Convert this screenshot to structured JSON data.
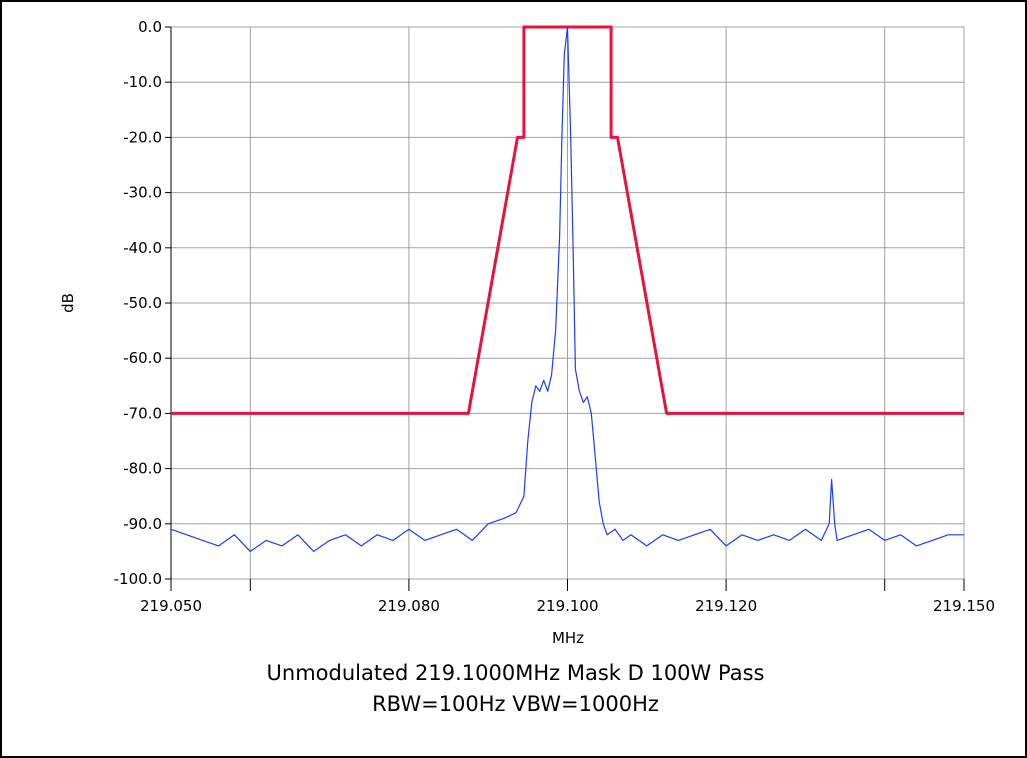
{
  "chart_data": {
    "type": "line",
    "caption_lines": [
      "Unmodulated  219.1000MHz  Mask D  100W Pass",
      "RBW=100Hz VBW=1000Hz"
    ],
    "xlabel": "MHz",
    "ylabel": "dB",
    "xlim": [
      219.05,
      219.15
    ],
    "ylim": [
      -100,
      0
    ],
    "x_tick_values": [
      219.05,
      219.06,
      219.08,
      219.1,
      219.12,
      219.14,
      219.15
    ],
    "x_tick_labels": [
      "219.050",
      "",
      "219.080",
      "219.100",
      "219.120",
      "",
      "219.150"
    ],
    "y_ticks": [
      0,
      -10,
      -20,
      -30,
      -40,
      -50,
      -60,
      -70,
      -80,
      -90,
      -100
    ],
    "y_tick_labels": [
      "0.0",
      "-10.0",
      "-20.0",
      "-30.0",
      "-40.0",
      "-50.0",
      "-60.0",
      "-70.0",
      "-80.0",
      "-90.0",
      "-100.0"
    ],
    "grid": true,
    "colors": {
      "mask": "#e8123c",
      "trace": "#1a3cff",
      "grid": "#a0a0a0"
    },
    "series": [
      {
        "role": "mask",
        "x": [
          219.05,
          219.0875,
          219.0937,
          219.0945,
          219.0945,
          219.1055,
          219.1055,
          219.1063,
          219.1125,
          219.15
        ],
        "y": [
          -70,
          -70,
          -20,
          -20,
          0,
          0,
          -20,
          -20,
          -70,
          -70
        ]
      },
      {
        "role": "trace",
        "x": [
          219.05,
          219.052,
          219.054,
          219.056,
          219.058,
          219.06,
          219.062,
          219.064,
          219.066,
          219.068,
          219.07,
          219.072,
          219.074,
          219.076,
          219.078,
          219.08,
          219.082,
          219.084,
          219.086,
          219.088,
          219.09,
          219.092,
          219.0935,
          219.0945,
          219.095,
          219.0955,
          219.096,
          219.0965,
          219.097,
          219.0975,
          219.098,
          219.0985,
          219.099,
          219.0993,
          219.0996,
          219.1,
          219.1004,
          219.1007,
          219.101,
          219.1015,
          219.102,
          219.1025,
          219.103,
          219.1035,
          219.104,
          219.1045,
          219.105,
          219.106,
          219.107,
          219.108,
          219.11,
          219.112,
          219.114,
          219.116,
          219.118,
          219.12,
          219.122,
          219.124,
          219.126,
          219.128,
          219.13,
          219.132,
          219.133,
          219.1333,
          219.1337,
          219.134,
          219.136,
          219.138,
          219.14,
          219.142,
          219.144,
          219.146,
          219.148,
          219.15
        ],
        "y": [
          -91,
          -92,
          -93,
          -94,
          -92,
          -95,
          -93,
          -94,
          -92,
          -95,
          -93,
          -92,
          -94,
          -92,
          -93,
          -91,
          -93,
          -92,
          -91,
          -93,
          -90,
          -89,
          -88,
          -85,
          -75,
          -68,
          -65,
          -66,
          -64,
          -66,
          -63,
          -55,
          -38,
          -20,
          -5,
          0,
          -20,
          -40,
          -62,
          -66,
          -68,
          -67,
          -70,
          -78,
          -86,
          -90,
          -92,
          -91,
          -93,
          -92,
          -94,
          -92,
          -93,
          -92,
          -91,
          -94,
          -92,
          -93,
          -92,
          -93,
          -91,
          -93,
          -90,
          -82,
          -90,
          -93,
          -92,
          -91,
          -93,
          -92,
          -94,
          -93,
          -92,
          -92
        ]
      }
    ]
  }
}
